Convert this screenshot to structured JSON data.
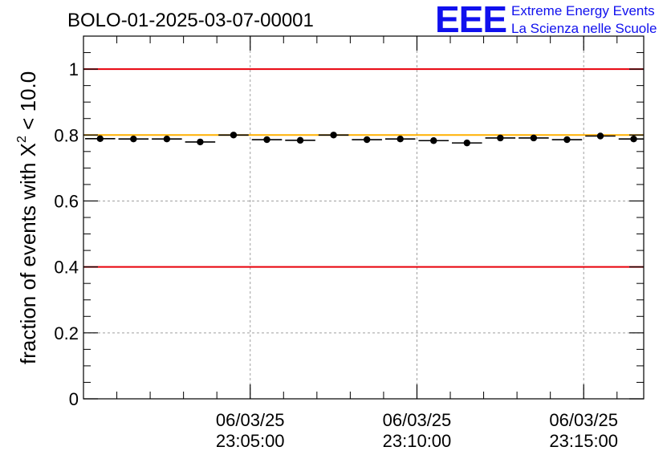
{
  "chart_data": {
    "type": "scatter",
    "title": "BOLO-01-2025-03-07-00001",
    "ylabel_prefix": "fraction of events with ",
    "ylabel_symbol": "X",
    "ylabel_superscript": "2",
    "ylabel_suffix": " < 10.0",
    "xlabel": "",
    "ylim": [
      0,
      1.1
    ],
    "yticks": [
      {
        "value": 0,
        "label": "0"
      },
      {
        "value": 0.2,
        "label": "0.2"
      },
      {
        "value": 0.4,
        "label": "0.4"
      },
      {
        "value": 0.6,
        "label": "0.6"
      },
      {
        "value": 0.8,
        "label": "0.8"
      },
      {
        "value": 1,
        "label": "1"
      }
    ],
    "xlim_minutes": [
      -5.0,
      11.8
    ],
    "xticks": [
      {
        "minute": 0,
        "date": "06/03/25",
        "time": "23:05:00"
      },
      {
        "minute": 5,
        "date": "06/03/25",
        "time": "23:10:00"
      },
      {
        "minute": 10,
        "date": "06/03/25",
        "time": "23:15:00"
      }
    ],
    "bin_width_minutes": 1.0,
    "x_minutes": [
      -4.5,
      -3.5,
      -2.5,
      -1.5,
      -0.5,
      0.5,
      1.5,
      2.5,
      3.5,
      4.5,
      5.5,
      6.5,
      7.5,
      8.5,
      9.5,
      10.5,
      11.5
    ],
    "values": [
      0.789,
      0.788,
      0.788,
      0.779,
      0.8,
      0.786,
      0.784,
      0.8,
      0.786,
      0.788,
      0.783,
      0.776,
      0.791,
      0.791,
      0.786,
      0.797,
      0.788
    ],
    "reference_lines": [
      {
        "value": 1.0,
        "color": "#e8000b"
      },
      {
        "value": 0.4,
        "color": "#e8000b"
      },
      {
        "value": 0.8,
        "color": "#ffb000"
      }
    ],
    "grid": true,
    "marker_color": "#000000"
  },
  "logo": {
    "text": "EEE",
    "line1": "Extreme Energy Events",
    "line2": "La Scienza nelle Scuole",
    "color": "#1010ee"
  }
}
